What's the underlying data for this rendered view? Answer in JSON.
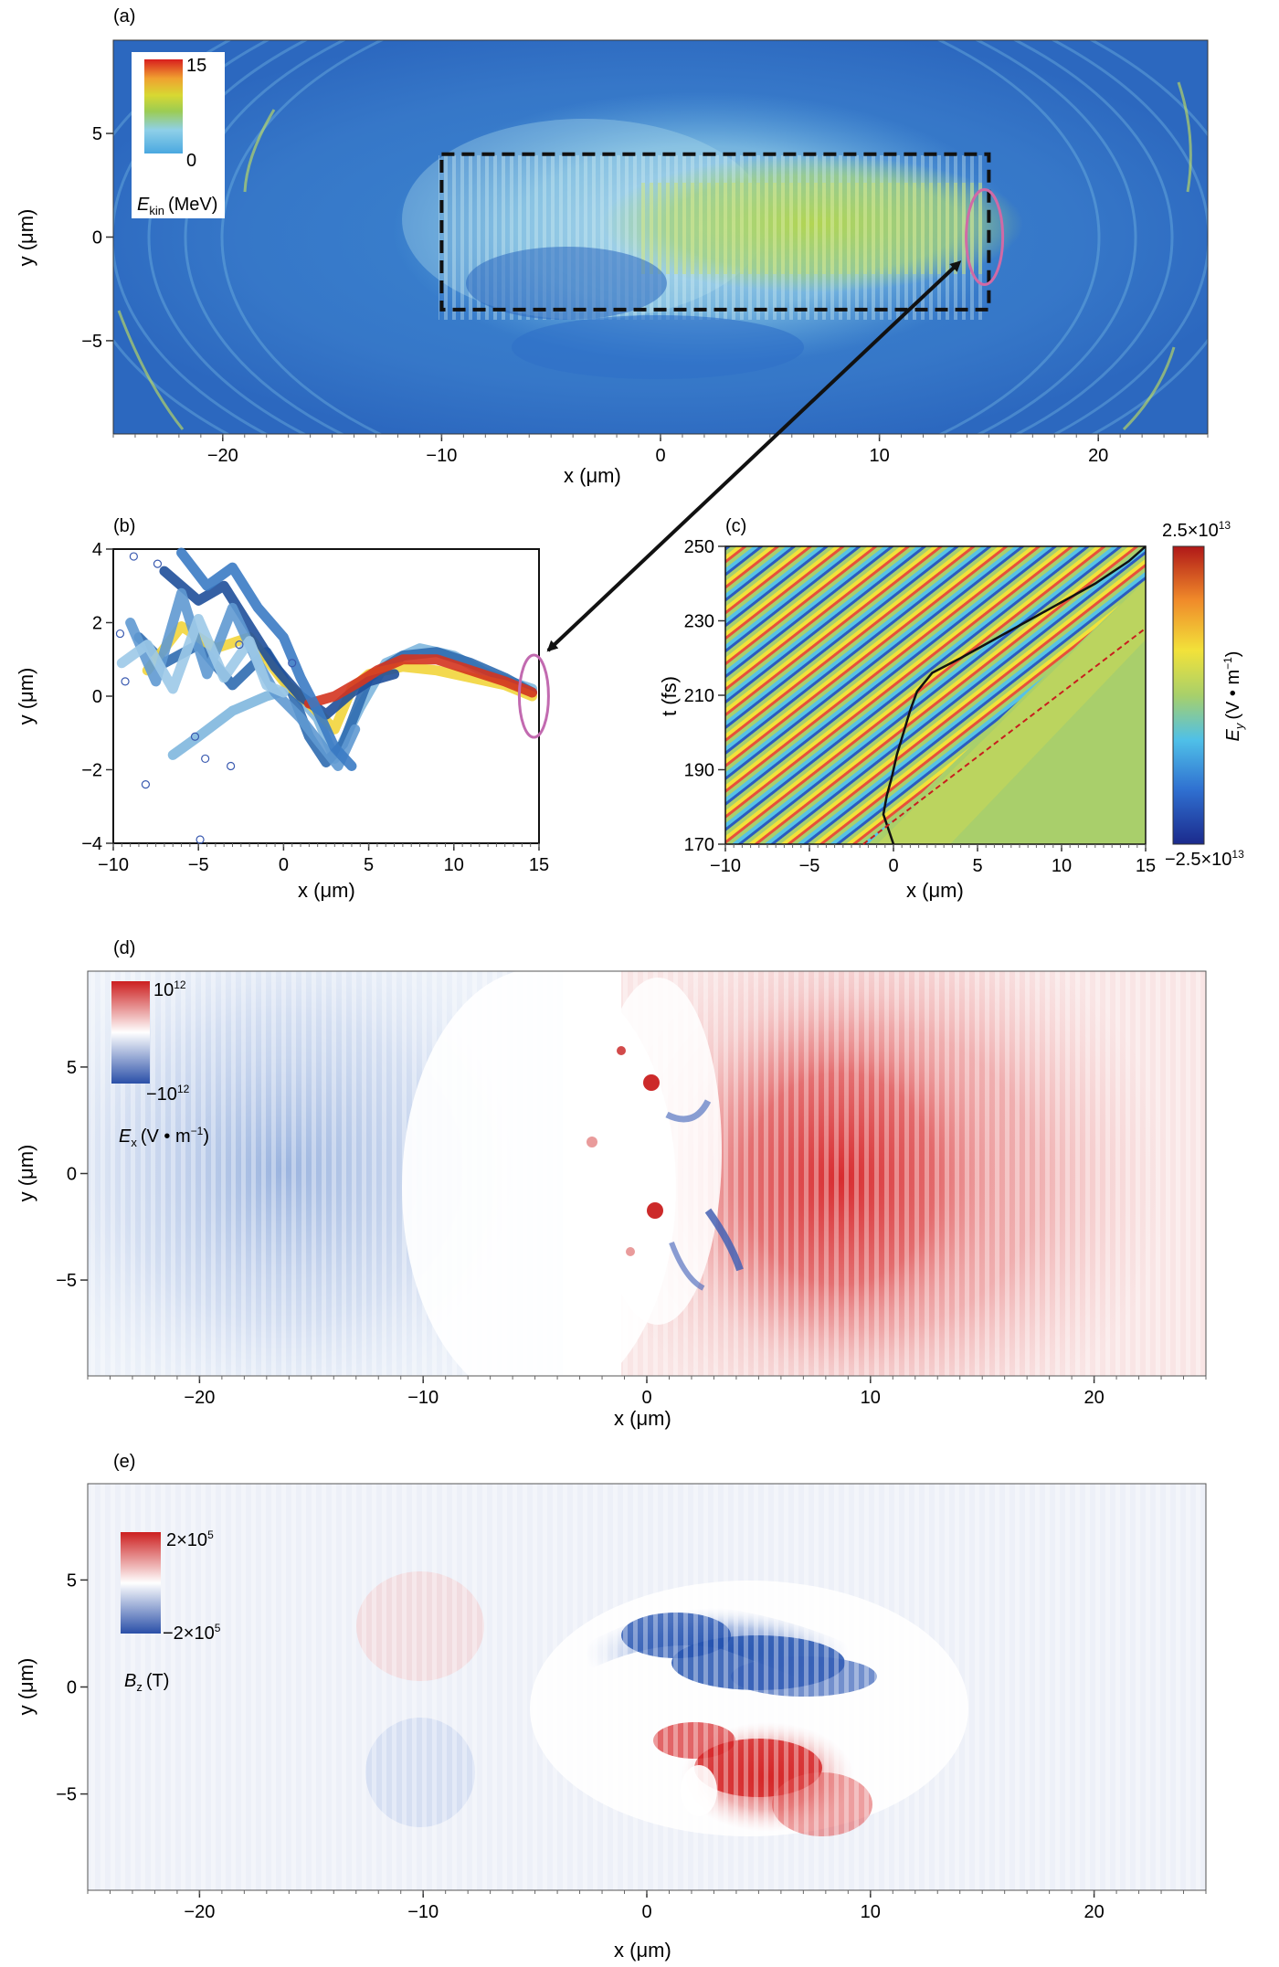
{
  "chart_data": [
    {
      "panel_label": "(a)",
      "type": "heatmap",
      "xlabel": "x (μm)",
      "ylabel": "y (μm)",
      "xlim": [
        -25,
        25
      ],
      "ylim": [
        -9.5,
        9.5
      ],
      "x_ticks": [
        "−20",
        "−10",
        "0",
        "10",
        "20"
      ],
      "x_tick_values": [
        -20,
        -10,
        0,
        10,
        20
      ],
      "y_ticks": [
        "5",
        "0",
        "−5"
      ],
      "y_tick_values": [
        5,
        0,
        -5
      ],
      "colorbar": {
        "label_main": "E",
        "label_sub": "kin",
        "label_unit": "(MeV)",
        "max_label": "15",
        "min_label": "0"
      },
      "annotations": {
        "dashed_box_x": [
          -10,
          15
        ],
        "dashed_box_y": [
          -3.5,
          4
        ],
        "ellipse_center": [
          14.8,
          0
        ]
      },
      "colors": {
        "background": "#2e6fc8",
        "mid": "#9bd3e6",
        "high": "#b5d84a"
      }
    },
    {
      "panel_label": "(b)",
      "type": "line",
      "xlabel": "x (μm)",
      "ylabel": "y (μm)",
      "xlim": [
        -10,
        15
      ],
      "ylim": [
        -4,
        4
      ],
      "x_ticks": [
        "−10",
        "−5",
        "0",
        "5",
        "10",
        "15"
      ],
      "x_tick_values": [
        -10,
        -5,
        0,
        5,
        10,
        15
      ],
      "y_ticks": [
        "4",
        "2",
        "0",
        "−2",
        "−4"
      ],
      "y_tick_values": [
        4,
        2,
        0,
        -2,
        -4
      ],
      "series": [
        {
          "x": [
            -6.5,
            -5,
            -3,
            -1,
            0.5,
            2,
            3,
            4.5,
            6,
            8,
            10,
            12,
            14.6
          ],
          "y": [
            -1.6,
            -1.1,
            -0.4,
            0,
            0.2,
            -0.6,
            -1.7,
            -0.3,
            0.9,
            1.3,
            1.1,
            0.6,
            0.2
          ],
          "color": "#7fb7de"
        },
        {
          "x": [
            -8.5,
            -7,
            -5,
            -3,
            -1,
            0.5,
            1.5,
            2.5,
            3.5,
            5,
            7,
            9,
            11,
            13,
            14.6
          ],
          "y": [
            1.6,
            0.9,
            1.4,
            0.3,
            1.2,
            0.1,
            -1.1,
            -1.8,
            -1.3,
            0.5,
            1.1,
            1.2,
            0.9,
            0.5,
            0.1
          ],
          "color": "#2f6cb0"
        },
        {
          "x": [
            -8,
            -6,
            -4,
            -2,
            0,
            1.5,
            3,
            4,
            5,
            7,
            9,
            11,
            13,
            14.6
          ],
          "y": [
            0.7,
            1.9,
            1.3,
            1.6,
            0.4,
            -0.2,
            -0.9,
            0.2,
            0.6,
            0.8,
            0.7,
            0.5,
            0.3,
            0
          ],
          "color": "#f2d53c"
        },
        {
          "x": [
            -7,
            -5,
            -3.5,
            -2,
            -0.5,
            1,
            2.5,
            4,
            5,
            6.5
          ],
          "y": [
            3.4,
            2.6,
            3,
            1.9,
            0.8,
            0,
            -0.5,
            0.1,
            0.4,
            0.6
          ],
          "color": "#1f4f9a"
        },
        {
          "x": [
            -9,
            -7.5,
            -6,
            -4.5,
            -3,
            -1.5,
            -0.5,
            1,
            2,
            3.2,
            4.2
          ],
          "y": [
            2,
            0.4,
            2.8,
            0.6,
            2.4,
            0.9,
            0.1,
            -0.6,
            -1.2,
            -1.9,
            -0.9
          ],
          "color": "#5f99d1"
        },
        {
          "x": [
            1.5,
            3,
            4.5,
            5.5,
            7,
            9,
            11,
            13,
            14.6
          ],
          "y": [
            -0.2,
            0,
            0.4,
            0.7,
            1,
            1,
            0.7,
            0.4,
            0.1
          ],
          "color": "#d4341f"
        },
        {
          "x": [
            -9.5,
            -8,
            -6.5,
            -5,
            -3.5,
            -2,
            -1,
            0
          ],
          "y": [
            0.9,
            1.4,
            0.2,
            2.1,
            0.5,
            1.5,
            0.3,
            0.1
          ],
          "color": "#9cc9e8"
        },
        {
          "x": [
            -6,
            -4.5,
            -3,
            -1.5,
            0,
            1,
            2,
            3,
            4
          ],
          "y": [
            3.9,
            3,
            3.5,
            2.4,
            1.6,
            0.5,
            -0.4,
            -1.4,
            -1.9
          ],
          "color": "#3b7bc4"
        }
      ],
      "markers": {
        "x": [
          -9.6,
          -8.8,
          -7.4,
          -4.9,
          -4.6,
          -3.1,
          -5.2,
          -8.1,
          -2.6,
          0.5,
          -9.3
        ],
        "y": [
          1.7,
          3.8,
          3.6,
          -3.9,
          -1.7,
          -1.9,
          -1.1,
          -2.4,
          1.4,
          0.9,
          0.4
        ],
        "color": "#3a5ab0"
      },
      "annotations": {
        "ellipse_center": [
          14.7,
          0
        ]
      }
    },
    {
      "panel_label": "(c)",
      "type": "heatmap",
      "xlabel": "x (μm)",
      "ylabel": "t (fs)",
      "xlim": [
        -10,
        15
      ],
      "ylim": [
        170,
        250
      ],
      "x_ticks": [
        "−10",
        "−5",
        "0",
        "5",
        "10",
        "15"
      ],
      "x_tick_values": [
        -10,
        -5,
        0,
        5,
        10,
        15
      ],
      "y_ticks": [
        "250",
        "230",
        "210",
        "190",
        "170"
      ],
      "y_tick_values": [
        250,
        230,
        210,
        190,
        170
      ],
      "colorbar": {
        "label_main": "E",
        "label_sub": "y",
        "label_unit": "(V • m",
        "label_unit_sup": "−1",
        "label_unit_end": ")",
        "max_label": "2.5×10",
        "max_sup": "13",
        "min_label": "−2.5×10",
        "min_sup": "13"
      },
      "trajectory": {
        "x": [
          0,
          -0.3,
          -0.6,
          -0.4,
          -0.1,
          0.2,
          0.6,
          1,
          1.4,
          2.3,
          4,
          6,
          8,
          10,
          12,
          14,
          15
        ],
        "y": [
          170,
          174,
          178,
          183,
          188,
          194,
          200,
          206,
          211,
          216,
          220,
          225,
          230,
          235,
          240,
          246,
          250
        ]
      },
      "front": {
        "x": [
          -1.8,
          15
        ],
        "y": [
          170,
          228
        ]
      }
    },
    {
      "panel_label": "(d)",
      "type": "heatmap",
      "xlabel": "x (μm)",
      "ylabel": "y (μm)",
      "xlim": [
        -25,
        25
      ],
      "ylim": [
        -9.5,
        9.5
      ],
      "x_ticks": [
        "−20",
        "−10",
        "0",
        "10",
        "20"
      ],
      "x_tick_values": [
        -20,
        -10,
        0,
        10,
        20
      ],
      "y_ticks": [
        "5",
        "0",
        "−5"
      ],
      "y_tick_values": [
        5,
        0,
        -5
      ],
      "colorbar": {
        "label_main": "E",
        "label_sub": "x",
        "label_unit": "(V • m",
        "label_unit_sup": "−1",
        "label_unit_end": ")",
        "max_label": "10",
        "max_sup": "12",
        "min_label": "−10",
        "min_sup": "12"
      }
    },
    {
      "panel_label": "(e)",
      "type": "heatmap",
      "xlabel": "x (μm)",
      "ylabel": "y (μm)",
      "xlim": [
        -25,
        25
      ],
      "ylim": [
        -9.5,
        9.5
      ],
      "x_ticks": [
        "−20",
        "−10",
        "0",
        "10",
        "20"
      ],
      "x_tick_values": [
        -20,
        -10,
        0,
        10,
        20
      ],
      "y_ticks": [
        "5",
        "0",
        "−5"
      ],
      "y_tick_values": [
        5,
        0,
        -5
      ],
      "colorbar": {
        "label_main": "B",
        "label_sub": "z",
        "label_unit": "(T)",
        "max_label": "2×10",
        "max_sup": "5",
        "min_label": "−2×10",
        "min_sup": "5"
      }
    }
  ]
}
